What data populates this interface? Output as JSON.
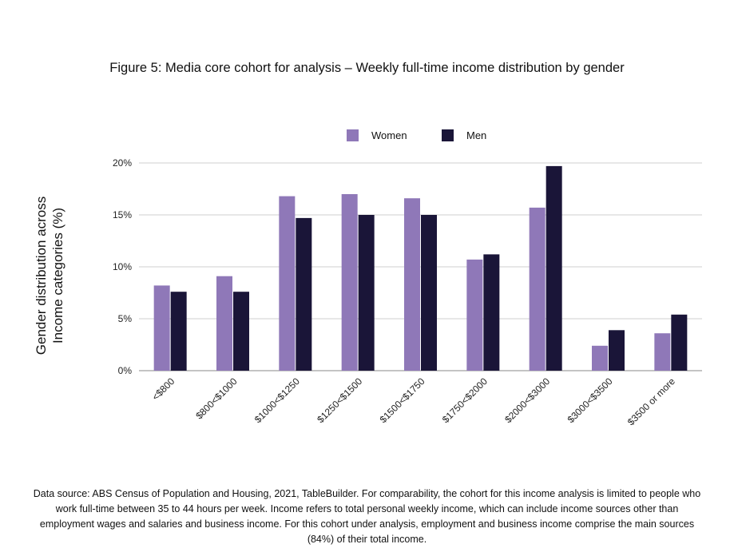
{
  "title": "Figure 5: Media core cohort for analysis – Weekly full-time income distribution by gender",
  "footnote": "Data source: ABS Census of Population and Housing, 2021, TableBuilder. For comparability, the cohort for this income analysis is limited to people who work full-time between 35 to 44 hours per week. Income refers to total personal weekly income, which can include income sources other than employment wages and salaries and business income. For this cohort under analysis, employment and business income comprise the main sources (84%) of their total income.",
  "chart_data": {
    "type": "bar",
    "title": "Figure 5: Media core cohort for analysis – Weekly full-time income distribution by gender",
    "ylabel_lines": [
      "Gender distribution across",
      "Income categories (%)"
    ],
    "xlabel": "",
    "ylim": [
      0,
      20
    ],
    "yticks": [
      0,
      5,
      10,
      15,
      20
    ],
    "ytick_labels": [
      "0%",
      "5%",
      "10%",
      "15%",
      "20%"
    ],
    "grid": true,
    "legend_position": "top-center",
    "categories": [
      "<$800",
      "$800<$1000",
      "$1000<$1250",
      "$1250<$1500",
      "$1500<$1750",
      "$1750<$2000",
      "$2000<$3000",
      "$3000<$3500",
      "$3500 or more"
    ],
    "series": [
      {
        "name": "Women",
        "color": "#8f78b8",
        "values": [
          8.2,
          9.1,
          16.8,
          17.0,
          16.6,
          10.7,
          15.7,
          2.4,
          3.6
        ]
      },
      {
        "name": "Men",
        "color": "#1a1538",
        "values": [
          7.6,
          7.6,
          14.7,
          15.0,
          15.0,
          11.2,
          19.7,
          3.9,
          5.4
        ]
      }
    ]
  }
}
